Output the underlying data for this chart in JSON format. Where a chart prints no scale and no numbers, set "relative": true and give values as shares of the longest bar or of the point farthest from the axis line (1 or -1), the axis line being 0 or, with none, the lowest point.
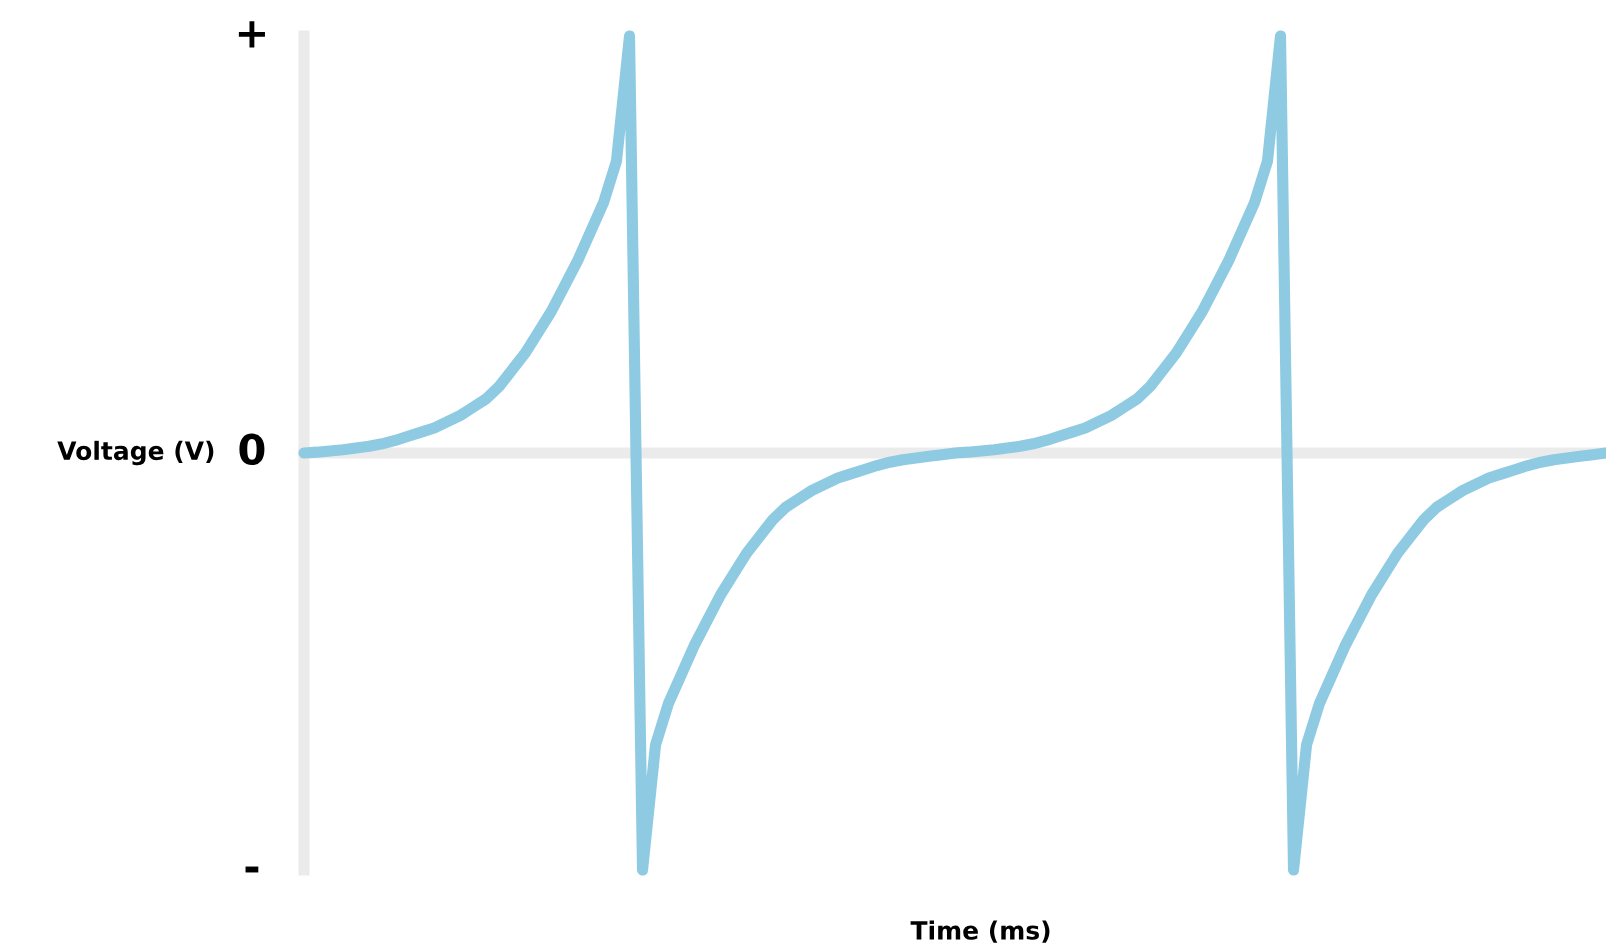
{
  "chart_data": {
    "type": "line",
    "xlabel": "Time (ms)",
    "ylabel": "Voltage (V)",
    "relative": true,
    "annotations": [
      "+",
      "0",
      "-"
    ],
    "categories": [
      null,
      null,
      null,
      null,
      null,
      null,
      null,
      null,
      null,
      null,
      null,
      null,
      null,
      null,
      null,
      null,
      null,
      null,
      null,
      null,
      null,
      null,
      null,
      null,
      null,
      null,
      null,
      null,
      null,
      null,
      null,
      null,
      null,
      null,
      null,
      null,
      null,
      null,
      null,
      null,
      null,
      null,
      null,
      null,
      null,
      null,
      null,
      null,
      null,
      null,
      null,
      null,
      null,
      null,
      null,
      null,
      null,
      null,
      null,
      null,
      null,
      null,
      null,
      null,
      null,
      null,
      null,
      null,
      null,
      null,
      null,
      null,
      null,
      null,
      null,
      null,
      null,
      null,
      null,
      null,
      null,
      null,
      null,
      null,
      null,
      null,
      null,
      null,
      null,
      null,
      null,
      null,
      null,
      null,
      null,
      null,
      null,
      null,
      null,
      null,
      null
    ],
    "series": [
      {
        "color": "#8ecae2",
        "values": [
          0,
          0.002,
          0.005,
          0.008,
          0.012,
          0.016,
          0.022,
          0.03,
          0.04,
          0.05,
          0.06,
          0.075,
          0.09,
          0.11,
          0.13,
          0.16,
          0.2,
          0.24,
          0.29,
          0.34,
          0.4,
          0.46,
          0.53,
          0.6,
          0.7,
          1,
          -1,
          -0.7,
          -0.6,
          -0.53,
          -0.46,
          -0.4,
          -0.34,
          -0.29,
          -0.24,
          -0.2,
          -0.16,
          -0.13,
          -0.11,
          -0.09,
          -0.075,
          -0.06,
          -0.05,
          -0.04,
          -0.03,
          -0.022,
          -0.016,
          -0.012,
          -0.008,
          -0.004,
          0,
          0.002,
          0.005,
          0.008,
          0.012,
          0.016,
          0.022,
          0.03,
          0.04,
          0.05,
          0.06,
          0.075,
          0.09,
          0.11,
          0.13,
          0.16,
          0.2,
          0.24,
          0.29,
          0.34,
          0.4,
          0.46,
          0.53,
          0.6,
          0.7,
          1,
          -1,
          -0.7,
          -0.6,
          -0.53,
          -0.46,
          -0.4,
          -0.34,
          -0.29,
          -0.24,
          -0.2,
          -0.16,
          -0.13,
          -0.11,
          -0.09,
          -0.075,
          -0.06,
          -0.05,
          -0.04,
          -0.03,
          -0.022,
          -0.016,
          -0.012,
          -0.008,
          -0.004,
          0
        ]
      }
    ]
  }
}
